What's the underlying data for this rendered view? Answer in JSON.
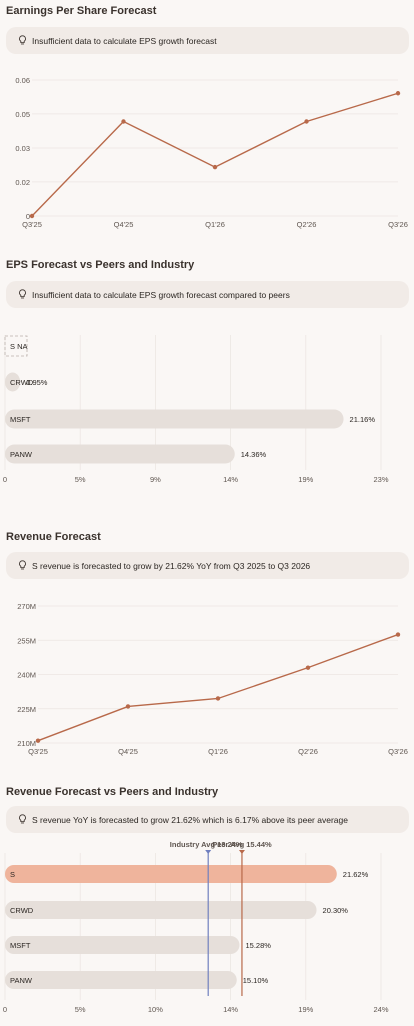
{
  "sections": {
    "eps_title": "Earnings Per Share Forecast",
    "eps_insight": "Insufficient data to calculate EPS growth forecast",
    "eps_peers_title": "EPS Forecast vs Peers and Industry",
    "eps_peers_insight": "Insufficient data to calculate EPS growth forecast compared to peers",
    "rev_title": "Revenue Forecast",
    "rev_insight": "S revenue is forecasted to grow by 21.62% YoY from Q3 2025 to Q3 2026",
    "rev_peers_title": "Revenue Forecast vs Peers and Industry",
    "rev_peers_insight": "S revenue YoY is forecasted to grow 21.62% which is 6.17% above its peer average"
  },
  "colors": {
    "line": "#b8694a",
    "bar": "#e6dfda",
    "highlight": "#efb49c",
    "industry": "#6f7fbf",
    "peer": "#b8694a",
    "grid": "#ece6e2"
  },
  "icons": {
    "insight": "lightbulb-icon"
  },
  "chart_data": [
    {
      "type": "line",
      "x": [
        "Q3'25",
        "Q4'25",
        "Q1'26",
        "Q2'26",
        "Q3'26"
      ],
      "values": [
        0,
        0.0435,
        0.0225,
        0.0435,
        0.0565
      ],
      "yticks": [
        "0",
        "0.02",
        "0.03",
        "0.05",
        "0.06"
      ],
      "ytick_values": [
        0,
        0.0157,
        0.0313,
        0.047,
        0.0626
      ],
      "ylim": [
        0,
        0.0626
      ]
    },
    {
      "type": "bar",
      "orientation": "horizontal",
      "categories": [
        "S",
        "CRWD",
        "MSFT",
        "PANW"
      ],
      "values": [
        null,
        0.95,
        21.16,
        14.36
      ],
      "value_labels": [
        "",
        "0.95%",
        "21.16%",
        "14.36%"
      ],
      "na_label": "S NA",
      "xticks": [
        "0",
        "5%",
        "9%",
        "14%",
        "19%",
        "23%"
      ],
      "xlim": [
        0,
        23.5
      ]
    },
    {
      "type": "line",
      "x": [
        "Q3'25",
        "Q4'25",
        "Q1'26",
        "Q2'26",
        "Q3'26"
      ],
      "values": [
        211,
        226,
        229.5,
        243,
        257.5
      ],
      "yticks": [
        "210M",
        "225M",
        "240M",
        "255M",
        "270M"
      ],
      "ytick_values": [
        210,
        225,
        240,
        255,
        270
      ],
      "ylim": [
        210,
        270
      ]
    },
    {
      "type": "bar",
      "orientation": "horizontal",
      "categories": [
        "S",
        "CRWD",
        "MSFT",
        "PANW"
      ],
      "values": [
        21.62,
        20.3,
        15.28,
        15.1
      ],
      "value_labels": [
        "21.62%",
        "20.30%",
        "15.28%",
        "15.10%"
      ],
      "highlight": "S",
      "reference_lines": [
        {
          "label": "Industry Avg 13.24%",
          "value": 13.24
        },
        {
          "label": "Peer Avg 15.44%",
          "value": 15.44
        }
      ],
      "xticks": [
        "0",
        "5%",
        "10%",
        "14%",
        "19%",
        "24%"
      ],
      "xlim": [
        0,
        24.5
      ]
    }
  ]
}
